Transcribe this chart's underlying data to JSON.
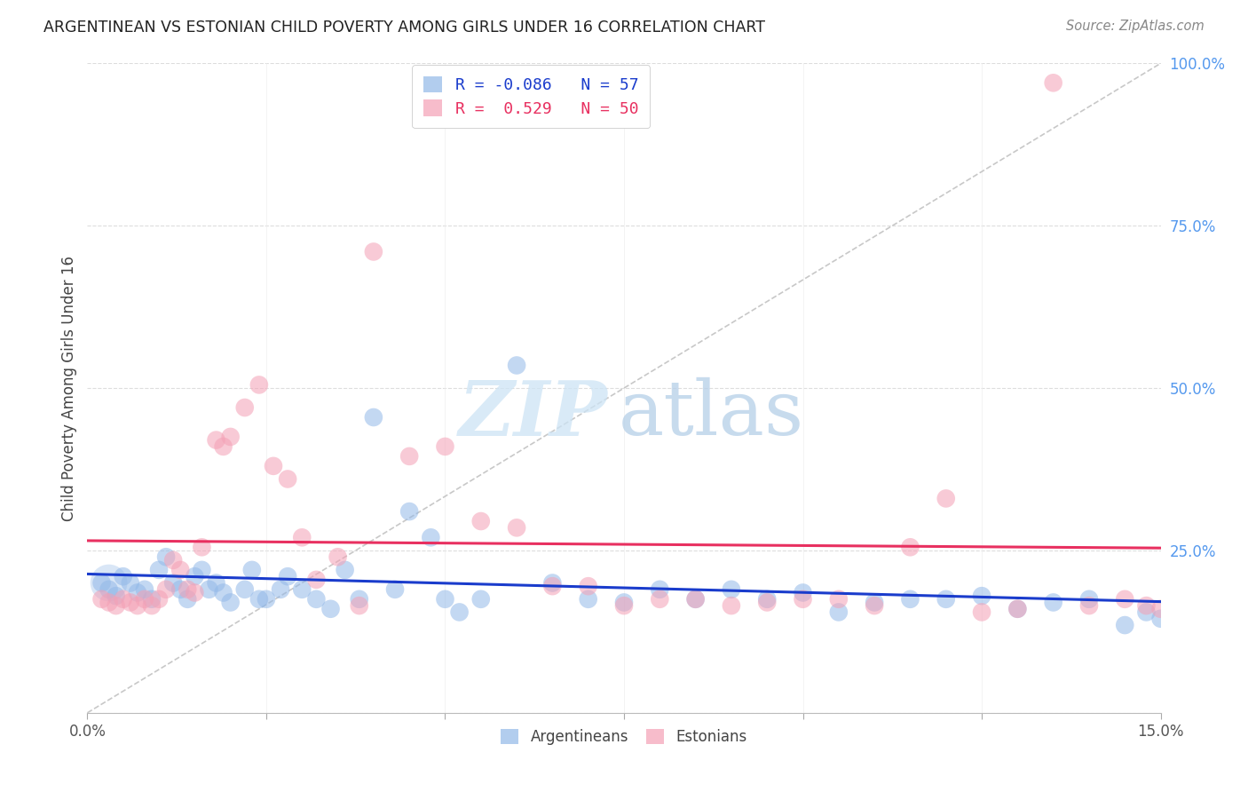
{
  "title": "ARGENTINEAN VS ESTONIAN CHILD POVERTY AMONG GIRLS UNDER 16 CORRELATION CHART",
  "source": "Source: ZipAtlas.com",
  "ylabel": "Child Poverty Among Girls Under 16",
  "xlim": [
    0.0,
    0.15
  ],
  "ylim": [
    0.0,
    1.0
  ],
  "xticks": [
    0.0,
    0.025,
    0.05,
    0.075,
    0.1,
    0.125,
    0.15
  ],
  "xtick_labels": [
    "0.0%",
    "",
    "",
    "",
    "",
    "",
    "15.0%"
  ],
  "ytick_labels_right": [
    "",
    "25.0%",
    "50.0%",
    "75.0%",
    "100.0%"
  ],
  "yticks_right": [
    0.0,
    0.25,
    0.5,
    0.75,
    1.0
  ],
  "argentina_R": -0.086,
  "argentina_N": 57,
  "estonia_R": 0.529,
  "estonia_N": 50,
  "argentina_color": "#92b8e8",
  "estonia_color": "#f4a0b5",
  "argentina_line_color": "#1a3ccc",
  "estonia_line_color": "#e83060",
  "diagonal_color": "#c8c8c8",
  "argentina_scatter_x": [
    0.002,
    0.003,
    0.004,
    0.005,
    0.006,
    0.007,
    0.008,
    0.009,
    0.01,
    0.011,
    0.012,
    0.013,
    0.014,
    0.015,
    0.016,
    0.017,
    0.018,
    0.019,
    0.02,
    0.022,
    0.023,
    0.024,
    0.025,
    0.027,
    0.028,
    0.03,
    0.032,
    0.034,
    0.036,
    0.038,
    0.04,
    0.043,
    0.045,
    0.048,
    0.05,
    0.052,
    0.055,
    0.06,
    0.065,
    0.07,
    0.075,
    0.08,
    0.085,
    0.09,
    0.095,
    0.1,
    0.105,
    0.11,
    0.115,
    0.12,
    0.125,
    0.13,
    0.135,
    0.14,
    0.145,
    0.148,
    0.15
  ],
  "argentina_scatter_y": [
    0.2,
    0.19,
    0.18,
    0.21,
    0.2,
    0.185,
    0.19,
    0.175,
    0.22,
    0.24,
    0.2,
    0.19,
    0.175,
    0.21,
    0.22,
    0.19,
    0.2,
    0.185,
    0.17,
    0.19,
    0.22,
    0.175,
    0.175,
    0.19,
    0.21,
    0.19,
    0.175,
    0.16,
    0.22,
    0.175,
    0.455,
    0.19,
    0.31,
    0.27,
    0.175,
    0.155,
    0.175,
    0.535,
    0.2,
    0.175,
    0.17,
    0.19,
    0.175,
    0.19,
    0.175,
    0.185,
    0.155,
    0.17,
    0.175,
    0.175,
    0.18,
    0.16,
    0.17,
    0.175,
    0.135,
    0.155,
    0.145
  ],
  "estonia_scatter_x": [
    0.002,
    0.003,
    0.004,
    0.005,
    0.006,
    0.007,
    0.008,
    0.009,
    0.01,
    0.011,
    0.012,
    0.013,
    0.014,
    0.015,
    0.016,
    0.018,
    0.019,
    0.02,
    0.022,
    0.024,
    0.026,
    0.028,
    0.03,
    0.032,
    0.035,
    0.038,
    0.04,
    0.045,
    0.05,
    0.055,
    0.06,
    0.065,
    0.07,
    0.075,
    0.08,
    0.085,
    0.09,
    0.095,
    0.1,
    0.105,
    0.11,
    0.115,
    0.12,
    0.125,
    0.13,
    0.135,
    0.14,
    0.145,
    0.148,
    0.15
  ],
  "estonia_scatter_y": [
    0.175,
    0.17,
    0.165,
    0.175,
    0.17,
    0.165,
    0.175,
    0.165,
    0.175,
    0.19,
    0.235,
    0.22,
    0.19,
    0.185,
    0.255,
    0.42,
    0.41,
    0.425,
    0.47,
    0.505,
    0.38,
    0.36,
    0.27,
    0.205,
    0.24,
    0.165,
    0.71,
    0.395,
    0.41,
    0.295,
    0.285,
    0.195,
    0.195,
    0.165,
    0.175,
    0.175,
    0.165,
    0.17,
    0.175,
    0.175,
    0.165,
    0.255,
    0.33,
    0.155,
    0.16,
    0.97,
    0.165,
    0.175,
    0.165,
    0.16
  ],
  "argentina_line_x0": 0.0,
  "argentina_line_x1": 0.15,
  "estonia_line_x0": 0.0,
  "estonia_line_x1": 0.15
}
